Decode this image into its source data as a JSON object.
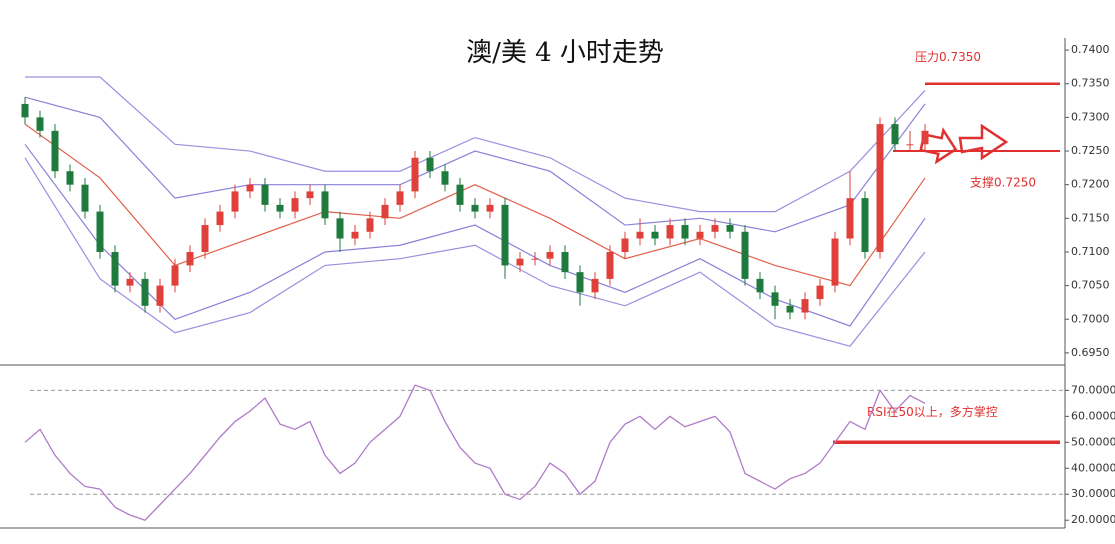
{
  "chart_data": [
    {
      "type": "candlestick",
      "title": "澳/美 4 小时走势",
      "open": [
        0.732,
        0.73,
        0.728,
        0.722,
        0.72,
        0.716,
        0.71,
        0.705,
        0.706,
        0.702,
        0.705,
        0.708,
        0.71,
        0.714,
        0.716,
        0.719,
        0.72,
        0.717,
        0.716,
        0.718,
        0.719,
        0.715,
        0.712,
        0.713,
        0.715,
        0.717,
        0.719,
        0.724,
        0.722,
        0.72,
        0.717,
        0.716,
        0.717,
        0.708,
        0.709,
        0.709,
        0.71,
        0.707,
        0.704,
        0.706,
        0.71,
        0.712,
        0.713,
        0.712,
        0.714,
        0.712,
        0.713,
        0.714,
        0.713,
        0.706,
        0.704,
        0.702,
        0.701,
        0.703,
        0.705,
        0.712,
        0.718,
        0.71,
        0.729,
        0.726,
        0.726
      ],
      "high": [
        0.733,
        0.731,
        0.729,
        0.723,
        0.721,
        0.717,
        0.711,
        0.707,
        0.707,
        0.706,
        0.709,
        0.711,
        0.715,
        0.717,
        0.72,
        0.721,
        0.721,
        0.718,
        0.719,
        0.72,
        0.72,
        0.716,
        0.714,
        0.716,
        0.718,
        0.72,
        0.725,
        0.725,
        0.723,
        0.721,
        0.718,
        0.718,
        0.718,
        0.71,
        0.71,
        0.711,
        0.711,
        0.708,
        0.707,
        0.711,
        0.713,
        0.715,
        0.714,
        0.715,
        0.715,
        0.714,
        0.715,
        0.715,
        0.714,
        0.707,
        0.705,
        0.703,
        0.704,
        0.706,
        0.713,
        0.722,
        0.719,
        0.73,
        0.73,
        0.728,
        0.729
      ],
      "low": [
        0.729,
        0.727,
        0.721,
        0.719,
        0.715,
        0.709,
        0.704,
        0.704,
        0.701,
        0.701,
        0.704,
        0.707,
        0.709,
        0.713,
        0.715,
        0.718,
        0.716,
        0.715,
        0.715,
        0.717,
        0.714,
        0.71,
        0.711,
        0.712,
        0.714,
        0.716,
        0.718,
        0.721,
        0.719,
        0.716,
        0.715,
        0.715,
        0.706,
        0.707,
        0.708,
        0.708,
        0.706,
        0.702,
        0.703,
        0.705,
        0.709,
        0.711,
        0.711,
        0.711,
        0.711,
        0.711,
        0.712,
        0.712,
        0.705,
        0.703,
        0.7,
        0.7,
        0.7,
        0.702,
        0.704,
        0.711,
        0.709,
        0.709,
        0.725,
        0.725,
        0.725
      ],
      "close": [
        0.73,
        0.728,
        0.722,
        0.72,
        0.716,
        0.71,
        0.705,
        0.706,
        0.702,
        0.705,
        0.708,
        0.71,
        0.714,
        0.716,
        0.719,
        0.72,
        0.717,
        0.716,
        0.718,
        0.719,
        0.715,
        0.712,
        0.713,
        0.715,
        0.717,
        0.719,
        0.724,
        0.722,
        0.72,
        0.717,
        0.716,
        0.717,
        0.708,
        0.709,
        0.709,
        0.71,
        0.707,
        0.704,
        0.706,
        0.71,
        0.712,
        0.713,
        0.712,
        0.714,
        0.712,
        0.713,
        0.714,
        0.713,
        0.706,
        0.704,
        0.702,
        0.701,
        0.703,
        0.705,
        0.712,
        0.718,
        0.71,
        0.729,
        0.726,
        0.726,
        0.728
      ],
      "up_color": "#e0403a",
      "down_color": "#1f7a3e",
      "band_x": [
        0,
        5,
        10,
        15,
        20,
        25,
        30,
        35,
        40,
        45,
        50,
        55,
        60
      ],
      "bands": [
        {
          "color": "#9a8fe0",
          "values": [
            0.736,
            0.736,
            0.726,
            0.725,
            0.722,
            0.722,
            0.727,
            0.724,
            0.718,
            0.716,
            0.716,
            0.722,
            0.734
          ]
        },
        {
          "color": "#8a80d8",
          "values": [
            0.733,
            0.73,
            0.718,
            0.72,
            0.72,
            0.72,
            0.725,
            0.722,
            0.714,
            0.715,
            0.713,
            0.717,
            0.732
          ]
        },
        {
          "color": "#e0604a",
          "values": [
            0.729,
            0.721,
            0.708,
            0.712,
            0.716,
            0.715,
            0.72,
            0.715,
            0.709,
            0.712,
            0.708,
            0.705,
            0.721
          ]
        },
        {
          "color": "#8a80d8",
          "values": [
            0.726,
            0.711,
            0.7,
            0.704,
            0.71,
            0.711,
            0.714,
            0.708,
            0.704,
            0.709,
            0.703,
            0.699,
            0.715
          ]
        },
        {
          "color": "#9a8fe0",
          "values": [
            0.724,
            0.706,
            0.698,
            0.701,
            0.708,
            0.709,
            0.711,
            0.705,
            0.702,
            0.707,
            0.699,
            0.696,
            0.71
          ]
        }
      ],
      "ylim": [
        0.6935,
        0.7415
      ],
      "yticks": [
        {
          "value": 0.695,
          "label": "0.6950"
        },
        {
          "value": 0.7,
          "label": "0.7000"
        },
        {
          "value": 0.705,
          "label": "0.7050"
        },
        {
          "value": 0.71,
          "label": "0.7100"
        },
        {
          "value": 0.715,
          "label": "0.7150"
        },
        {
          "value": 0.72,
          "label": "0.7200"
        },
        {
          "value": 0.725,
          "label": "0.7250"
        },
        {
          "value": 0.73,
          "label": "0.7300"
        },
        {
          "value": 0.735,
          "label": "0.7350"
        },
        {
          "value": 0.74,
          "label": "0.7400"
        }
      ],
      "hlines": [
        {
          "value": 0.735,
          "label": "压力0.7350",
          "color": "#e03030"
        },
        {
          "value": 0.725,
          "label": "支撑0.7250",
          "color": "#e03030"
        }
      ]
    },
    {
      "type": "line",
      "color": "#b07ac8",
      "values": [
        50,
        55,
        45,
        38,
        33,
        32,
        25,
        22,
        20,
        26,
        32,
        38,
        45,
        52,
        58,
        62,
        67,
        57,
        55,
        58,
        45,
        38,
        42,
        50,
        55,
        60,
        72,
        70,
        58,
        48,
        42,
        40,
        30,
        28,
        33,
        42,
        38,
        30,
        35,
        50,
        57,
        60,
        55,
        60,
        56,
        58,
        60,
        54,
        38,
        35,
        32,
        36,
        38,
        42,
        50,
        58,
        55,
        70,
        62,
        68,
        65
      ],
      "ylim": [
        17,
        79
      ],
      "yticks": [
        {
          "value": 20,
          "label": "20.0000"
        },
        {
          "value": 30,
          "label": "30.0000"
        },
        {
          "value": 40,
          "label": "40.0000"
        },
        {
          "value": 50,
          "label": "50.0000"
        },
        {
          "value": 60,
          "label": "60.0000"
        },
        {
          "value": 70,
          "label": "70.0000"
        }
      ],
      "reference_lines": [
        30,
        70
      ],
      "hlines": [
        {
          "value": 50,
          "label": "RSI在50以上，多方掌控",
          "color": "#e03030"
        }
      ]
    }
  ]
}
